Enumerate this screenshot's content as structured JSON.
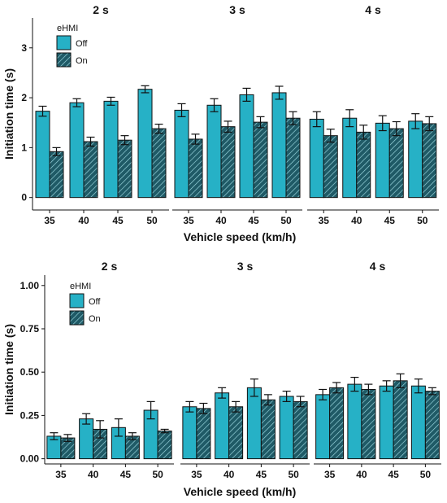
{
  "colors": {
    "off": "#26b1c6",
    "on": "#1f5a66",
    "hatch": "#9fdbe3",
    "stroke": "#111111"
  },
  "chart_data": [
    {
      "type": "bar",
      "facets": [
        "2 s",
        "3 s",
        "4 s"
      ],
      "categories": [
        "35",
        "40",
        "45",
        "50"
      ],
      "xlabel": "Vehicle speed (km/h)",
      "ylabel": "Initiation time (s)",
      "ylim": [
        -0.25,
        3.6
      ],
      "yticks": [
        "0",
        "1",
        "2",
        "3"
      ],
      "legend": {
        "title": "eHMI",
        "entries": [
          "Off",
          "On"
        ],
        "placement": "top-left"
      },
      "series": [
        {
          "name": "Off",
          "values": [
            [
              1.73,
              1.9,
              1.93,
              2.17
            ],
            [
              1.75,
              1.85,
              2.06,
              2.1
            ],
            [
              1.57,
              1.59,
              1.49,
              1.53
            ]
          ],
          "errors": [
            [
              0.1,
              0.08,
              0.08,
              0.07
            ],
            [
              0.13,
              0.13,
              0.13,
              0.13
            ],
            [
              0.15,
              0.17,
              0.15,
              0.15
            ]
          ]
        },
        {
          "name": "On",
          "values": [
            [
              0.92,
              1.12,
              1.15,
              1.38
            ],
            [
              1.17,
              1.42,
              1.51,
              1.59
            ],
            [
              1.24,
              1.31,
              1.38,
              1.48
            ]
          ],
          "errors": [
            [
              0.08,
              0.09,
              0.09,
              0.09
            ],
            [
              0.1,
              0.11,
              0.11,
              0.13
            ],
            [
              0.13,
              0.14,
              0.14,
              0.14
            ]
          ]
        }
      ]
    },
    {
      "type": "bar",
      "facets": [
        "2 s",
        "3 s",
        "4 s"
      ],
      "categories": [
        "35",
        "40",
        "45",
        "50"
      ],
      "xlabel": "Vehicle speed (km/h)",
      "ylabel": "Initiation time (s)",
      "ylim": [
        -0.03,
        1.06
      ],
      "yticks": [
        "0.00",
        "0.25",
        "0.50",
        "0.75",
        "1.00"
      ],
      "legend": {
        "title": "eHMI",
        "entries": [
          "Off",
          "On"
        ],
        "placement": "top-left"
      },
      "series": [
        {
          "name": "Off",
          "values": [
            [
              0.13,
              0.23,
              0.18,
              0.28
            ],
            [
              0.3,
              0.38,
              0.41,
              0.36
            ],
            [
              0.37,
              0.43,
              0.42,
              0.42
            ]
          ],
          "errors": [
            [
              0.02,
              0.03,
              0.05,
              0.05
            ],
            [
              0.03,
              0.03,
              0.05,
              0.03
            ],
            [
              0.03,
              0.04,
              0.03,
              0.04
            ]
          ]
        },
        {
          "name": "On",
          "values": [
            [
              0.12,
              0.17,
              0.13,
              0.16
            ],
            [
              0.29,
              0.3,
              0.34,
              0.33
            ],
            [
              0.41,
              0.4,
              0.45,
              0.39
            ]
          ],
          "errors": [
            [
              0.02,
              0.05,
              0.02,
              0.01
            ],
            [
              0.03,
              0.03,
              0.03,
              0.03
            ],
            [
              0.03,
              0.03,
              0.04,
              0.02
            ]
          ]
        }
      ]
    }
  ]
}
